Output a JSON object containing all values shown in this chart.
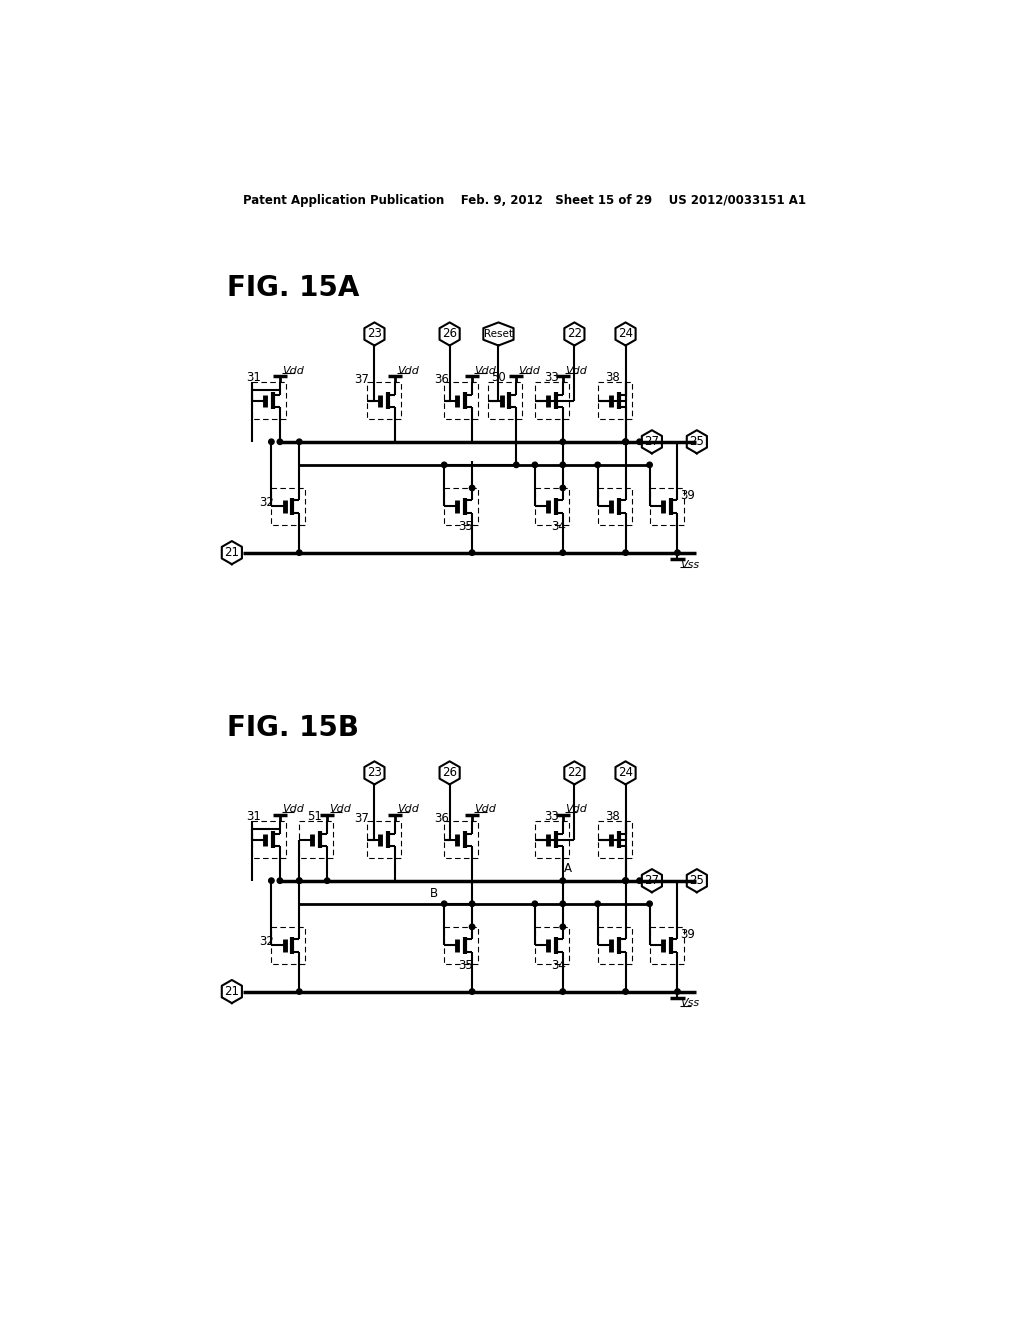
{
  "header": "Patent Application Publication    Feb. 9, 2012   Sheet 15 of 29    US 2012/0033151 A1",
  "fig_a_label": "FIG. 15A",
  "fig_b_label": "FIG. 15B",
  "bg": "#ffffff",
  "fg": "#000000"
}
